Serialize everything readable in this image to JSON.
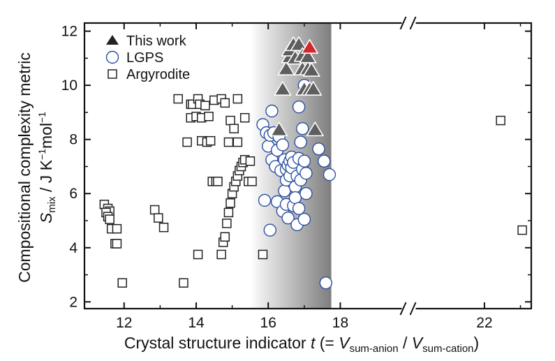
{
  "chart_data": {
    "type": "scatter",
    "xlabel": {
      "prefix": "Crystal structure indicator ",
      "var": "t",
      "mid": " (= ",
      "v1": "V",
      "s1": "sum-anion",
      "sep": " / ",
      "v2": "V",
      "s2": "sum-cation",
      "close": ")"
    },
    "ylabel": {
      "line1": "Compositional complexity metric",
      "var": "S",
      "sub": "mix",
      "unit_a": " / J K",
      "sup1": "−1",
      "unit_b": "mol",
      "sup2": "−1"
    },
    "xlim": [
      10.9,
      23.3
    ],
    "ylim": [
      1.75,
      12.3
    ],
    "x_axis_break": {
      "between": [
        18.4,
        21.4
      ]
    },
    "x_ticks": [
      12,
      14,
      16,
      18,
      22
    ],
    "x_tick_labels": [
      "12",
      "14",
      "16",
      "18",
      "22"
    ],
    "y_ticks": [
      2,
      4,
      6,
      8,
      10,
      12
    ],
    "y_tick_labels": [
      "2",
      "4",
      "6",
      "8",
      "10",
      "12"
    ],
    "shaded_region": {
      "x": [
        15.5,
        17.75
      ]
    },
    "legend": {
      "position": "top-left",
      "entries": [
        "This work",
        "LGPS",
        "Argyrodite"
      ]
    },
    "series": [
      {
        "name": "Argyrodite",
        "marker": "square",
        "points": [
          [
            11.45,
            5.6
          ],
          [
            11.55,
            5.45
          ],
          [
            11.6,
            5.35
          ],
          [
            11.5,
            5.3
          ],
          [
            11.55,
            5.15
          ],
          [
            11.6,
            5.05
          ],
          [
            11.65,
            4.7
          ],
          [
            11.8,
            4.7
          ],
          [
            11.75,
            4.15
          ],
          [
            11.8,
            4.15
          ],
          [
            11.95,
            2.7
          ],
          [
            12.85,
            5.4
          ],
          [
            12.95,
            5.1
          ],
          [
            13.1,
            4.75
          ],
          [
            13.5,
            9.5
          ],
          [
            13.65,
            2.7
          ],
          [
            13.75,
            7.9
          ],
          [
            13.85,
            8.8
          ],
          [
            13.85,
            9.3
          ],
          [
            13.9,
            9.3
          ],
          [
            14.0,
            8.85
          ],
          [
            14.05,
            9.5
          ],
          [
            14.1,
            9.3
          ],
          [
            14.05,
            3.75
          ],
          [
            14.15,
            8.8
          ],
          [
            14.15,
            7.95
          ],
          [
            14.25,
            9.25
          ],
          [
            14.3,
            7.9
          ],
          [
            14.35,
            8.85
          ],
          [
            14.4,
            7.95
          ],
          [
            14.45,
            6.45
          ],
          [
            14.55,
            6.45
          ],
          [
            14.6,
            6.45
          ],
          [
            14.5,
            9.45
          ],
          [
            14.7,
            9.5
          ],
          [
            14.8,
            9.35
          ],
          [
            14.9,
            7.9
          ],
          [
            14.95,
            8.7
          ],
          [
            15.05,
            8.4
          ],
          [
            15.15,
            7.9
          ],
          [
            15.15,
            9.5
          ],
          [
            15.35,
            8.8
          ],
          [
            15.45,
            6.45
          ],
          [
            15.55,
            6.45
          ],
          [
            15.85,
            3.75
          ],
          [
            14.7,
            3.75
          ],
          [
            14.75,
            4.2
          ],
          [
            14.8,
            4.4
          ],
          [
            14.85,
            4.9
          ],
          [
            14.9,
            5.3
          ],
          [
            14.95,
            5.65
          ],
          [
            15.0,
            6.0
          ],
          [
            15.05,
            6.25
          ],
          [
            15.1,
            6.45
          ],
          [
            15.15,
            6.65
          ],
          [
            15.2,
            6.85
          ],
          [
            15.25,
            7.0
          ],
          [
            15.3,
            7.15
          ],
          [
            15.35,
            7.25
          ],
          [
            15.5,
            7.2
          ],
          [
            22.45,
            8.7
          ],
          [
            23.05,
            4.65
          ]
        ]
      },
      {
        "name": "LGPS",
        "marker": "circle",
        "points": [
          [
            15.85,
            8.55
          ],
          [
            15.9,
            5.75
          ],
          [
            15.95,
            8.25
          ],
          [
            16.0,
            7.75
          ],
          [
            16.05,
            8.15
          ],
          [
            16.1,
            7.25
          ],
          [
            16.05,
            4.65
          ],
          [
            16.1,
            9.05
          ],
          [
            16.15,
            8.25
          ],
          [
            16.2,
            7.0
          ],
          [
            16.25,
            5.7
          ],
          [
            16.25,
            7.6
          ],
          [
            16.3,
            8.1
          ],
          [
            16.35,
            6.85
          ],
          [
            16.4,
            7.8
          ],
          [
            16.4,
            5.35
          ],
          [
            16.45,
            6.1
          ],
          [
            16.45,
            7.25
          ],
          [
            16.5,
            5.6
          ],
          [
            16.5,
            6.5
          ],
          [
            16.5,
            6.9
          ],
          [
            16.55,
            7.05
          ],
          [
            16.55,
            5.1
          ],
          [
            16.6,
            7.2
          ],
          [
            16.6,
            6.65
          ],
          [
            16.65,
            6.95
          ],
          [
            16.65,
            7.35
          ],
          [
            16.7,
            7.15
          ],
          [
            16.7,
            5.55
          ],
          [
            16.75,
            6.25
          ],
          [
            16.75,
            5.85
          ],
          [
            16.8,
            4.85
          ],
          [
            16.8,
            6.65
          ],
          [
            16.85,
            7.3
          ],
          [
            16.85,
            5.45
          ],
          [
            16.85,
            9.2
          ],
          [
            16.9,
            7.9
          ],
          [
            16.9,
            6.5
          ],
          [
            16.95,
            6.9
          ],
          [
            16.95,
            8.4
          ],
          [
            17.0,
            10.0
          ],
          [
            17.0,
            7.2
          ],
          [
            17.0,
            5.05
          ],
          [
            17.05,
            6.0
          ],
          [
            17.05,
            6.75
          ],
          [
            17.4,
            7.65
          ],
          [
            17.55,
            7.2
          ],
          [
            17.6,
            2.7
          ],
          [
            17.7,
            6.7
          ]
        ]
      },
      {
        "name": "This work",
        "marker": "triangle",
        "points": [
          [
            16.3,
            8.35
          ],
          [
            16.4,
            9.85
          ],
          [
            16.5,
            10.6
          ],
          [
            16.6,
            11.05
          ],
          [
            16.6,
            11.3
          ],
          [
            16.7,
            11.5
          ],
          [
            16.75,
            11.0
          ],
          [
            16.85,
            11.5
          ],
          [
            16.95,
            11.1
          ],
          [
            16.95,
            10.6
          ],
          [
            17.0,
            9.85
          ],
          [
            17.1,
            10.6
          ],
          [
            17.15,
            9.85
          ],
          [
            17.25,
            9.85
          ],
          [
            17.1,
            11.05
          ],
          [
            17.2,
            10.55
          ],
          [
            17.3,
            8.35
          ],
          [
            17.15,
            11.4,
            "highlight"
          ]
        ]
      }
    ],
    "colors": {
      "triangle_fill": "#5e5e5e",
      "triangle_highlight": "#d3272e",
      "circle_stroke": "#2b4fa3",
      "square_stroke": "#222222",
      "shade_dark": "#7e7e7e"
    }
  }
}
